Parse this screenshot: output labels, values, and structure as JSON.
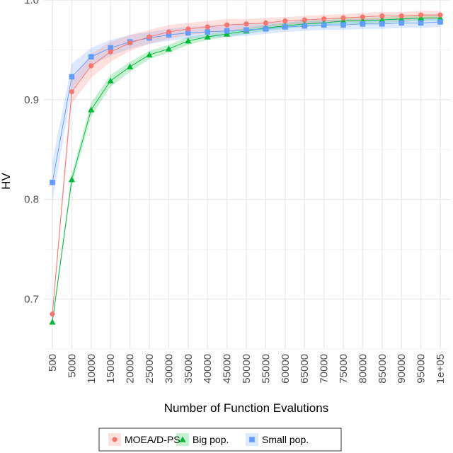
{
  "chart_data": {
    "type": "line",
    "xlabel": "Number of Function Evalutions",
    "ylabel": "HV",
    "categories": [
      "500",
      "5000",
      "10000",
      "15000",
      "20000",
      "25000",
      "30000",
      "35000",
      "40000",
      "45000",
      "50000",
      "55000",
      "60000",
      "65000",
      "70000",
      "75000",
      "80000",
      "85000",
      "90000",
      "95000",
      "1e+05"
    ],
    "ylim": [
      0.65,
      1.0
    ],
    "yticks": [
      0.7,
      0.8,
      0.9,
      1.0
    ],
    "ytick_labels": [
      "0.7",
      "0.8",
      "0.9",
      "1.0"
    ],
    "grid": true,
    "legend_position": "bottom",
    "series": [
      {
        "name": "MOEA/D-PS",
        "color": "#f8766d",
        "marker": "circle",
        "values": [
          0.685,
          0.908,
          0.934,
          0.948,
          0.957,
          0.963,
          0.968,
          0.971,
          0.973,
          0.975,
          0.976,
          0.977,
          0.979,
          0.98,
          0.981,
          0.982,
          0.983,
          0.984,
          0.984,
          0.985,
          0.985
        ],
        "lower": [
          0.679,
          0.896,
          0.922,
          0.938,
          0.949,
          0.956,
          0.961,
          0.965,
          0.967,
          0.969,
          0.971,
          0.973,
          0.975,
          0.976,
          0.977,
          0.978,
          0.979,
          0.98,
          0.98,
          0.981,
          0.981
        ],
        "upper": [
          0.691,
          0.92,
          0.946,
          0.958,
          0.965,
          0.97,
          0.975,
          0.977,
          0.979,
          0.981,
          0.981,
          0.982,
          0.983,
          0.984,
          0.985,
          0.986,
          0.987,
          0.988,
          0.988,
          0.989,
          0.989
        ]
      },
      {
        "name": "Big pop.",
        "color": "#00ba38",
        "marker": "triangle",
        "values": [
          0.677,
          0.82,
          0.89,
          0.919,
          0.933,
          0.945,
          0.951,
          0.959,
          0.963,
          0.966,
          0.969,
          0.972,
          0.974,
          0.976,
          0.977,
          0.979,
          0.979,
          0.98,
          0.981,
          0.982,
          0.982
        ],
        "lower": [
          0.673,
          0.814,
          0.883,
          0.913,
          0.928,
          0.941,
          0.947,
          0.955,
          0.96,
          0.963,
          0.966,
          0.969,
          0.971,
          0.973,
          0.974,
          0.976,
          0.976,
          0.977,
          0.978,
          0.979,
          0.979
        ],
        "upper": [
          0.681,
          0.826,
          0.897,
          0.925,
          0.938,
          0.949,
          0.955,
          0.963,
          0.966,
          0.969,
          0.972,
          0.975,
          0.977,
          0.979,
          0.98,
          0.982,
          0.982,
          0.983,
          0.984,
          0.985,
          0.985
        ]
      },
      {
        "name": "Small pop.",
        "color": "#619cff",
        "marker": "square",
        "values": [
          0.817,
          0.923,
          0.943,
          0.952,
          0.958,
          0.962,
          0.965,
          0.967,
          0.968,
          0.969,
          0.97,
          0.971,
          0.973,
          0.974,
          0.975,
          0.975,
          0.976,
          0.976,
          0.977,
          0.977,
          0.978
        ],
        "lower": [
          0.796,
          0.91,
          0.934,
          0.944,
          0.951,
          0.956,
          0.959,
          0.961,
          0.962,
          0.963,
          0.964,
          0.966,
          0.968,
          0.969,
          0.97,
          0.97,
          0.971,
          0.971,
          0.972,
          0.972,
          0.973
        ],
        "upper": [
          0.838,
          0.936,
          0.952,
          0.96,
          0.965,
          0.968,
          0.971,
          0.973,
          0.974,
          0.975,
          0.976,
          0.977,
          0.978,
          0.979,
          0.98,
          0.98,
          0.981,
          0.981,
          0.982,
          0.982,
          0.983
        ]
      }
    ]
  }
}
